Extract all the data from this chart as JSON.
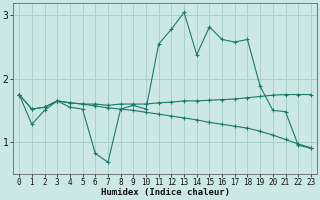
{
  "xlabel": "Humidex (Indice chaleur)",
  "xlim": [
    -0.5,
    23.5
  ],
  "ylim": [
    0.5,
    3.2
  ],
  "yticks": [
    1,
    2,
    3
  ],
  "xticks": [
    0,
    1,
    2,
    3,
    4,
    5,
    6,
    7,
    8,
    9,
    10,
    11,
    12,
    13,
    14,
    15,
    16,
    17,
    18,
    19,
    20,
    21,
    22,
    23
  ],
  "bg_color": "#cce8e4",
  "grid_color": "#aacfcc",
  "line_color": "#1a7a6e",
  "lines": [
    {
      "x": [
        0,
        1,
        2,
        3,
        4,
        5,
        6,
        7,
        8,
        9,
        10,
        11,
        12,
        13,
        14,
        15,
        16,
        17,
        18,
        19,
        20,
        21,
        22,
        23
      ],
      "y": [
        1.75,
        1.28,
        1.5,
        1.65,
        1.55,
        1.52,
        0.82,
        0.68,
        1.52,
        1.58,
        1.52,
        2.55,
        2.78,
        3.05,
        2.38,
        2.82,
        2.62,
        2.58,
        2.62,
        1.88,
        1.5,
        1.48,
        0.95,
        0.9
      ]
    },
    {
      "x": [
        0,
        1,
        2,
        3,
        4,
        5,
        6,
        7,
        8,
        9,
        10,
        11,
        12,
        13,
        14,
        15,
        16,
        17,
        18,
        19,
        20,
        21,
        22,
        23
      ],
      "y": [
        1.75,
        1.52,
        1.55,
        1.65,
        1.62,
        1.6,
        1.6,
        1.58,
        1.6,
        1.6,
        1.6,
        1.62,
        1.63,
        1.65,
        1.65,
        1.66,
        1.67,
        1.68,
        1.7,
        1.72,
        1.74,
        1.75,
        1.75,
        1.75
      ]
    },
    {
      "x": [
        0,
        1,
        2,
        3,
        4,
        5,
        6,
        7,
        8,
        9,
        10,
        11,
        12,
        13,
        14,
        15,
        16,
        17,
        18,
        19,
        20,
        21,
        22,
        23
      ],
      "y": [
        1.75,
        1.52,
        1.55,
        1.65,
        1.62,
        1.6,
        1.57,
        1.54,
        1.52,
        1.5,
        1.47,
        1.44,
        1.41,
        1.38,
        1.35,
        1.31,
        1.28,
        1.25,
        1.22,
        1.17,
        1.11,
        1.04,
        0.97,
        0.91
      ]
    }
  ]
}
